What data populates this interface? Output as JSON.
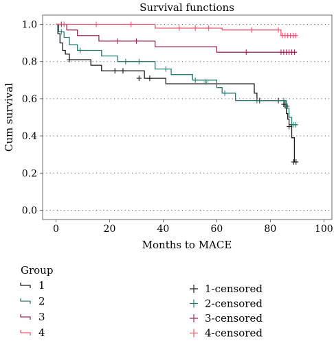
{
  "chart_data": {
    "type": "line",
    "title": "Survival functions",
    "xlabel": "Months to MACE",
    "ylabel": "Cum survival",
    "xlim": [
      -5,
      103
    ],
    "ylim": [
      -0.05,
      1.05
    ],
    "x_ticks": [
      0,
      20,
      40,
      60,
      80,
      100
    ],
    "y_ticks": [
      0.0,
      0.2,
      0.4,
      0.6,
      0.8,
      1.0
    ],
    "x_tick_labels": [
      "0",
      "20",
      "40",
      "60",
      "80",
      "100"
    ],
    "y_tick_labels": [
      "0.0",
      "0.2",
      "0.4",
      "0.6",
      "0.8",
      "1.0"
    ],
    "grid": "horizontal-dotted",
    "legend_title": "Group",
    "series": [
      {
        "name": "1",
        "censored_label": "1-censored",
        "color": "#1a1a1a",
        "steps": [
          [
            0,
            1.0
          ],
          [
            0.7,
            0.95
          ],
          [
            1.5,
            0.9
          ],
          [
            2.5,
            0.86
          ],
          [
            3.5,
            0.84
          ],
          [
            5,
            0.81
          ],
          [
            13,
            0.78
          ],
          [
            17,
            0.75
          ],
          [
            33,
            0.71
          ],
          [
            41,
            0.68
          ],
          [
            74,
            0.63
          ],
          [
            75,
            0.59
          ],
          [
            85.5,
            0.55
          ],
          [
            86,
            0.52
          ],
          [
            86.5,
            0.49
          ],
          [
            87,
            0.46
          ],
          [
            88,
            0.39
          ],
          [
            89,
            0.26
          ],
          [
            90,
            0.26
          ]
        ],
        "censored": [
          [
            5,
            0.81
          ],
          [
            22,
            0.75
          ],
          [
            25,
            0.75
          ],
          [
            31,
            0.71
          ],
          [
            35,
            0.71
          ],
          [
            76,
            0.59
          ],
          [
            83,
            0.59
          ],
          [
            85,
            0.57
          ],
          [
            86.3,
            0.56
          ],
          [
            87,
            0.45
          ],
          [
            88.7,
            0.26
          ],
          [
            89.6,
            0.26
          ]
        ]
      },
      {
        "name": "2",
        "censored_label": "2-censored",
        "color": "#2a7a6f",
        "steps": [
          [
            0,
            1.0
          ],
          [
            1,
            0.96
          ],
          [
            3,
            0.93
          ],
          [
            5,
            0.89
          ],
          [
            8,
            0.86
          ],
          [
            17,
            0.83
          ],
          [
            23,
            0.8
          ],
          [
            37,
            0.76
          ],
          [
            43,
            0.73
          ],
          [
            51,
            0.7
          ],
          [
            60,
            0.66
          ],
          [
            62,
            0.63
          ],
          [
            67,
            0.59
          ],
          [
            86,
            0.55
          ],
          [
            87,
            0.5
          ],
          [
            88,
            0.46
          ],
          [
            90,
            0.46
          ]
        ],
        "censored": [
          [
            2,
            0.96
          ],
          [
            9,
            0.86
          ],
          [
            26,
            0.8
          ],
          [
            31,
            0.8
          ],
          [
            41,
            0.76
          ],
          [
            52,
            0.7
          ],
          [
            56,
            0.69
          ],
          [
            63,
            0.63
          ],
          [
            75,
            0.59
          ],
          [
            85,
            0.59
          ],
          [
            88.5,
            0.46
          ],
          [
            89.5,
            0.46
          ]
        ]
      },
      {
        "name": "3",
        "censored_label": "3-censored",
        "color": "#a3285a",
        "steps": [
          [
            0,
            1.0
          ],
          [
            4,
            0.97
          ],
          [
            8,
            0.94
          ],
          [
            16,
            0.91
          ],
          [
            37,
            0.88
          ],
          [
            60,
            0.85
          ],
          [
            90,
            0.85
          ]
        ],
        "censored": [
          [
            2,
            1.0
          ],
          [
            23,
            0.91
          ],
          [
            30,
            0.91
          ],
          [
            71,
            0.85
          ],
          [
            84,
            0.85
          ],
          [
            85,
            0.85
          ],
          [
            86,
            0.85
          ],
          [
            87,
            0.85
          ],
          [
            88,
            0.85
          ],
          [
            89,
            0.85
          ]
        ]
      },
      {
        "name": "4",
        "censored_label": "4-censored",
        "color": "#f0566e",
        "steps": [
          [
            0,
            1.0
          ],
          [
            37,
            0.98
          ],
          [
            62,
            0.97
          ],
          [
            84,
            0.94
          ],
          [
            90,
            0.94
          ]
        ],
        "censored": [
          [
            3,
            1.0
          ],
          [
            15,
            1.0
          ],
          [
            28,
            1.0
          ],
          [
            46,
            0.98
          ],
          [
            52,
            0.98
          ],
          [
            57,
            0.98
          ],
          [
            73,
            0.97
          ],
          [
            83,
            0.97
          ],
          [
            84.5,
            0.94
          ],
          [
            85.5,
            0.94
          ],
          [
            86.5,
            0.94
          ],
          [
            87.5,
            0.94
          ],
          [
            88.5,
            0.94
          ],
          [
            89.5,
            0.94
          ]
        ]
      }
    ]
  }
}
